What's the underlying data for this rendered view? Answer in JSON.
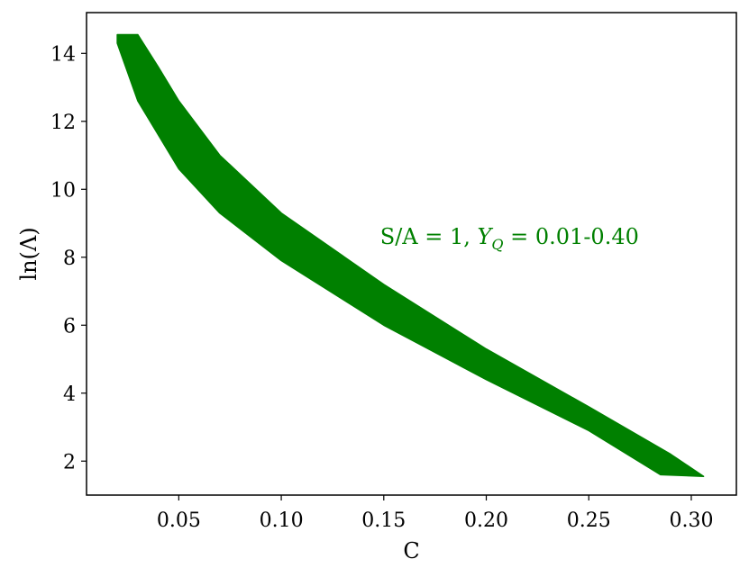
{
  "chart_data": {
    "type": "area",
    "xlabel": "C",
    "ylabel": "ln(Λ)",
    "xlim": [
      0.005,
      0.322
    ],
    "ylim": [
      1.0,
      15.2
    ],
    "x_ticks": [
      0.05,
      0.1,
      0.15,
      0.2,
      0.25,
      0.3
    ],
    "x_tick_labels": [
      "0.05",
      "0.10",
      "0.15",
      "0.20",
      "0.25",
      "0.30"
    ],
    "y_ticks": [
      2,
      4,
      6,
      8,
      10,
      12,
      14
    ],
    "y_tick_labels": [
      "2",
      "4",
      "6",
      "8",
      "10",
      "12",
      "14"
    ],
    "grid": false,
    "color": "#008000",
    "series": [
      {
        "upper": [
          {
            "x": 0.02,
            "y": 14.55
          },
          {
            "x": 0.03,
            "y": 14.55
          },
          {
            "x": 0.04,
            "y": 13.6
          },
          {
            "x": 0.05,
            "y": 12.6
          },
          {
            "x": 0.07,
            "y": 11.0
          },
          {
            "x": 0.1,
            "y": 9.3
          },
          {
            "x": 0.15,
            "y": 7.2
          },
          {
            "x": 0.2,
            "y": 5.3
          },
          {
            "x": 0.25,
            "y": 3.6
          },
          {
            "x": 0.29,
            "y": 2.2
          },
          {
            "x": 0.306,
            "y": 1.55
          }
        ],
        "lower": [
          {
            "x": 0.02,
            "y": 14.3
          },
          {
            "x": 0.03,
            "y": 12.6
          },
          {
            "x": 0.05,
            "y": 10.6
          },
          {
            "x": 0.07,
            "y": 9.3
          },
          {
            "x": 0.1,
            "y": 7.9
          },
          {
            "x": 0.15,
            "y": 6.0
          },
          {
            "x": 0.2,
            "y": 4.4
          },
          {
            "x": 0.25,
            "y": 2.9
          },
          {
            "x": 0.285,
            "y": 1.6
          },
          {
            "x": 0.306,
            "y": 1.55
          }
        ]
      }
    ],
    "annotation": {
      "prefix": "S/A = 1, ",
      "var": "Y",
      "sub": "Q",
      "suffix": " = 0.01-0.40",
      "x": 0.15,
      "y": 8.6
    }
  }
}
